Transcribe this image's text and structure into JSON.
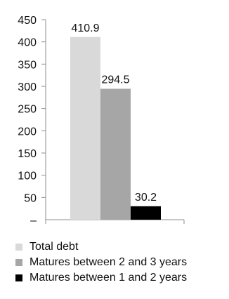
{
  "chart_data": {
    "type": "bar",
    "categories": [
      "Total debt",
      "Matures between 2 and 3 years",
      "Matures between 1 and 2 years"
    ],
    "values": [
      410.9,
      294.5,
      30.2
    ],
    "data_labels": [
      "410.9",
      "294.5",
      "30.2"
    ],
    "colors": [
      "#d9d9d9",
      "#a6a6a6",
      "#000000"
    ],
    "ylim": [
      0,
      450
    ],
    "yticks": [
      0,
      50,
      100,
      150,
      200,
      250,
      300,
      350,
      400,
      450
    ],
    "ytick_labels": [
      "–",
      "50",
      "100",
      "150",
      "200",
      "250",
      "300",
      "350",
      "400",
      "450"
    ],
    "title": "",
    "xlabel": "",
    "ylabel": "",
    "grid": false,
    "legend_position": "bottom",
    "legend": [
      {
        "label": "Total debt",
        "color": "#d9d9d9"
      },
      {
        "label": "Matures between 2 and 3 years",
        "color": "#a6a6a6"
      },
      {
        "label": "Matures between 1 and 2 years",
        "color": "#000000"
      }
    ]
  }
}
